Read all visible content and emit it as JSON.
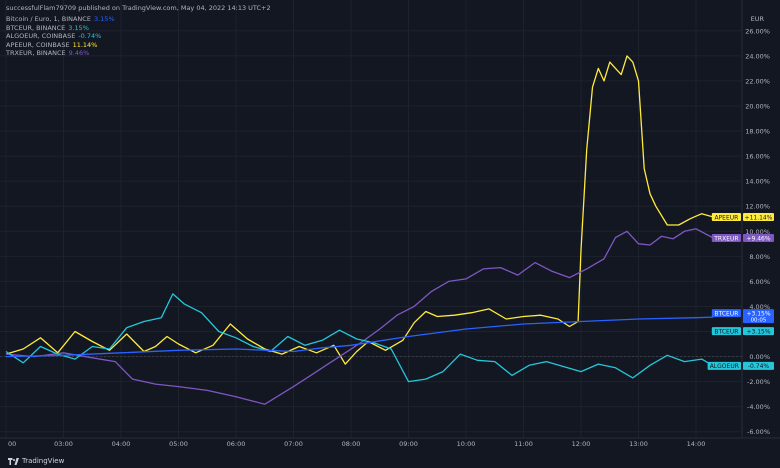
{
  "header": {
    "published": "successfulFlam79709 published on TradingView.com, May 04, 2022 14:13 UTC+2",
    "legend": [
      {
        "label": "Bitcoin / Euro, 1, BINANCE",
        "value": "3.15%",
        "color": "#2962ff"
      },
      {
        "label": "BTCEUR, BINANCE",
        "value": "3.15%",
        "color": "#2ec4c4"
      },
      {
        "label": "ALGOEUR, COINBASE",
        "value": "-0.74%",
        "color": "#26c6da"
      },
      {
        "label": "APEEUR, COINBASE",
        "value": "11.14%",
        "color": "#ffeb3b"
      },
      {
        "label": "TRXEUR, BINANCE",
        "value": "9.46%",
        "color": "#7e57c2"
      }
    ]
  },
  "footer": {
    "brand": "TradingView"
  },
  "chart_data": {
    "type": "line",
    "currency": "EUR",
    "x_tick_labels": [
      "00",
      "03:00",
      "04:00",
      "05:00",
      "06:00",
      "07:00",
      "08:00",
      "09:00",
      "10:00",
      "11:00",
      "12:00",
      "13:00",
      "14:00"
    ],
    "y_tick_labels": [
      "26.00%",
      "24.00%",
      "22.00%",
      "20.00%",
      "18.00%",
      "16.00%",
      "14.00%",
      "12.00%",
      "10.00%",
      "8.00%",
      "6.00%",
      "4.00%",
      "2.00%",
      "0.00%",
      "-2.00%",
      "-4.00%",
      "-6.00%"
    ],
    "ylim": [
      -6.5,
      27.5
    ],
    "xlim": [
      2.0,
      14.8
    ],
    "grid": true,
    "series": [
      {
        "name": "APEEUR",
        "color": "#ffeb3b",
        "x": [
          2.0,
          2.3,
          2.6,
          2.9,
          3.2,
          3.5,
          3.8,
          4.1,
          4.4,
          4.6,
          4.8,
          5.0,
          5.3,
          5.6,
          5.9,
          6.2,
          6.5,
          6.8,
          7.1,
          7.4,
          7.7,
          7.9,
          8.1,
          8.3,
          8.6,
          8.9,
          9.1,
          9.3,
          9.5,
          9.8,
          10.1,
          10.4,
          10.7,
          11.0,
          11.3,
          11.6,
          11.8,
          11.95,
          12.0,
          12.1,
          12.2,
          12.3,
          12.4,
          12.5,
          12.6,
          12.7,
          12.8,
          12.9,
          13.0,
          13.1,
          13.2,
          13.3,
          13.5,
          13.7,
          13.9,
          14.1,
          14.3
        ],
        "values": [
          0.2,
          0.6,
          1.5,
          0.3,
          2.0,
          1.2,
          0.5,
          1.8,
          0.4,
          0.8,
          1.6,
          1.0,
          0.3,
          0.9,
          2.6,
          1.4,
          0.6,
          0.2,
          0.8,
          0.3,
          0.9,
          -0.6,
          0.4,
          1.2,
          0.5,
          1.3,
          2.7,
          3.6,
          3.2,
          3.3,
          3.5,
          3.8,
          3.0,
          3.2,
          3.3,
          3.0,
          2.4,
          2.8,
          8.5,
          16.5,
          21.5,
          23.0,
          22.0,
          23.5,
          23.0,
          22.5,
          24.0,
          23.5,
          22.0,
          15.0,
          13.0,
          12.0,
          10.5,
          10.5,
          11.0,
          11.4,
          11.14
        ]
      },
      {
        "name": "TRXEUR",
        "color": "#7e57c2",
        "x": [
          2.0,
          2.5,
          3.0,
          3.5,
          3.9,
          4.2,
          4.6,
          5.0,
          5.5,
          6.0,
          6.5,
          7.0,
          7.3,
          7.6,
          7.9,
          8.2,
          8.5,
          8.8,
          9.1,
          9.4,
          9.7,
          10.0,
          10.3,
          10.6,
          10.9,
          11.2,
          11.5,
          11.8,
          12.1,
          12.4,
          12.6,
          12.8,
          13.0,
          13.2,
          13.4,
          13.6,
          13.8,
          14.0,
          14.3
        ],
        "values": [
          0.2,
          0.0,
          0.3,
          -0.1,
          -0.4,
          -1.8,
          -2.2,
          -2.4,
          -2.7,
          -3.2,
          -3.8,
          -2.4,
          -1.5,
          -0.6,
          0.3,
          1.2,
          2.2,
          3.3,
          4.0,
          5.2,
          6.0,
          6.2,
          7.0,
          7.1,
          6.5,
          7.5,
          6.8,
          6.3,
          7.0,
          7.8,
          9.5,
          10.0,
          9.0,
          8.9,
          9.6,
          9.4,
          10.0,
          10.2,
          9.46
        ]
      },
      {
        "name": "ALGOEUR",
        "color": "#26c6da",
        "x": [
          2.0,
          2.3,
          2.6,
          2.9,
          3.2,
          3.5,
          3.8,
          4.1,
          4.4,
          4.7,
          4.9,
          5.1,
          5.4,
          5.7,
          6.0,
          6.3,
          6.6,
          6.9,
          7.2,
          7.5,
          7.8,
          8.1,
          8.4,
          8.7,
          9.0,
          9.3,
          9.6,
          9.9,
          10.2,
          10.5,
          10.8,
          11.1,
          11.4,
          11.7,
          12.0,
          12.3,
          12.6,
          12.9,
          13.2,
          13.5,
          13.8,
          14.1,
          14.3
        ],
        "values": [
          0.4,
          -0.5,
          0.8,
          0.2,
          -0.2,
          0.8,
          0.6,
          2.3,
          2.8,
          3.1,
          5.0,
          4.2,
          3.5,
          2.0,
          1.5,
          0.8,
          0.4,
          1.6,
          0.9,
          1.3,
          2.1,
          1.4,
          1.1,
          0.6,
          -2.0,
          -1.8,
          -1.2,
          0.2,
          -0.3,
          -0.4,
          -1.5,
          -0.7,
          -0.4,
          -0.8,
          -1.2,
          -0.6,
          -0.9,
          -1.7,
          -0.7,
          0.1,
          -0.4,
          -0.2,
          -0.74
        ]
      },
      {
        "name": "BTCEUR",
        "color": "#2962ff",
        "x": [
          2.0,
          3.0,
          4.0,
          5.0,
          6.0,
          7.0,
          7.5,
          8.0,
          9.0,
          10.0,
          11.0,
          12.0,
          13.0,
          14.0,
          14.3
        ],
        "values": [
          0.0,
          0.1,
          0.3,
          0.5,
          0.6,
          0.4,
          0.7,
          0.9,
          1.6,
          2.2,
          2.6,
          2.8,
          3.0,
          3.1,
          3.15
        ]
      }
    ],
    "last_labels": [
      {
        "name": "APEEUR",
        "text": "+11.14%",
        "value": 11.14,
        "bg": "#ffeb3b",
        "fg": "#131722"
      },
      {
        "name": "TRXEUR",
        "text": "+9.46%",
        "value": 9.46,
        "bg": "#7e57c2",
        "fg": "#ffffff"
      },
      {
        "name": "BTCEUR",
        "text": "+3.15%",
        "value": 3.15,
        "bg": "#2962ff",
        "fg": "#ffffff",
        "sub": "00:05"
      },
      {
        "name": "BTCEUR",
        "text": "+3.15%",
        "value": 3.15,
        "bg": "#26c6da",
        "fg": "#131722",
        "row": 2
      },
      {
        "name": "ALGOEUR",
        "text": "-0.74%",
        "value": -0.74,
        "bg": "#26c6da",
        "fg": "#131722"
      }
    ]
  }
}
